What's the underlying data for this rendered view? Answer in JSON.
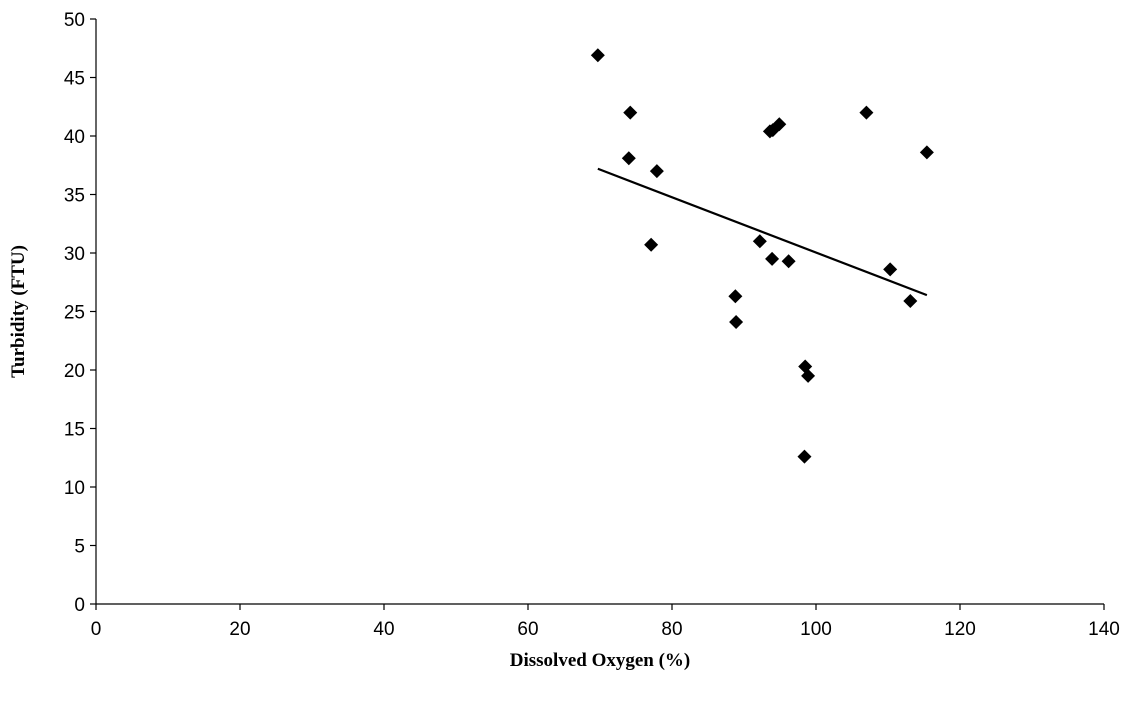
{
  "chart_data": {
    "type": "scatter",
    "title": "",
    "xlabel": "Dissolved Oxygen (%)",
    "ylabel": "Turbidity (FTU)",
    "xlim": [
      0,
      140
    ],
    "ylim": [
      0,
      50
    ],
    "xticks": [
      0,
      20,
      40,
      60,
      80,
      100,
      120,
      140
    ],
    "yticks": [
      0,
      5,
      10,
      15,
      20,
      25,
      30,
      35,
      40,
      45,
      50
    ],
    "grid": false,
    "legend": "none",
    "marker": "diamond",
    "marker_color": "#000000",
    "points": [
      {
        "x": 69.7,
        "y": 46.9
      },
      {
        "x": 74.2,
        "y": 42.0
      },
      {
        "x": 74.0,
        "y": 38.1
      },
      {
        "x": 77.9,
        "y": 37.0
      },
      {
        "x": 77.1,
        "y": 30.7
      },
      {
        "x": 88.8,
        "y": 26.3
      },
      {
        "x": 88.9,
        "y": 24.1
      },
      {
        "x": 92.2,
        "y": 31.0
      },
      {
        "x": 93.9,
        "y": 29.5
      },
      {
        "x": 93.6,
        "y": 40.4
      },
      {
        "x": 94.0,
        "y": 40.5
      },
      {
        "x": 94.9,
        "y": 41.0
      },
      {
        "x": 96.2,
        "y": 29.3
      },
      {
        "x": 98.5,
        "y": 20.3
      },
      {
        "x": 98.9,
        "y": 19.5
      },
      {
        "x": 98.4,
        "y": 12.6
      },
      {
        "x": 107.0,
        "y": 42.0
      },
      {
        "x": 110.3,
        "y": 28.6
      },
      {
        "x": 113.1,
        "y": 25.9
      },
      {
        "x": 115.4,
        "y": 38.6
      }
    ],
    "trendline": {
      "type": "linear",
      "x": [
        69.7,
        115.4
      ],
      "y": [
        37.2,
        26.4
      ],
      "color": "#000000"
    }
  }
}
